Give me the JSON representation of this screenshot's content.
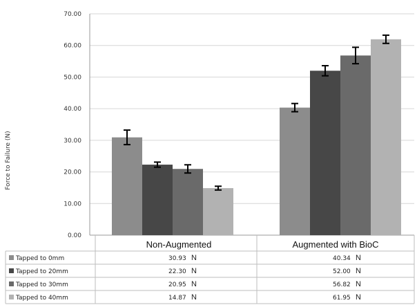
{
  "chart_data": {
    "type": "bar",
    "title": "",
    "xlabel": "",
    "ylabel": "Force to Failure (N)",
    "ylim": [
      0,
      70
    ],
    "yticks": [
      "0.00",
      "10.00",
      "20.00",
      "30.00",
      "40.00",
      "50.00",
      "60.00",
      "70.00"
    ],
    "grid": true,
    "categories": [
      "Non-Augmented",
      "Augmented with BioC"
    ],
    "unit_suffix": "N",
    "series": [
      {
        "name": "Tapped to 0mm",
        "color": "#8c8c8c",
        "values": [
          30.93,
          40.34
        ],
        "errors": [
          2.3,
          1.3
        ],
        "labels": [
          "30.93",
          "40.34"
        ]
      },
      {
        "name": "Tapped to 20mm",
        "color": "#474747",
        "values": [
          22.3,
          52.0
        ],
        "errors": [
          0.8,
          1.6
        ],
        "labels": [
          "22.30",
          "52.00"
        ]
      },
      {
        "name": "Tapped to 30mm",
        "color": "#6a6a6a",
        "values": [
          20.95,
          56.82
        ],
        "errors": [
          1.3,
          2.6
        ],
        "labels": [
          "20.95",
          "56.82"
        ]
      },
      {
        "name": "Tapped to 40mm",
        "color": "#b2b2b2",
        "values": [
          14.87,
          61.95
        ],
        "errors": [
          0.6,
          1.3
        ],
        "labels": [
          "14.87",
          "61.95"
        ]
      }
    ]
  }
}
